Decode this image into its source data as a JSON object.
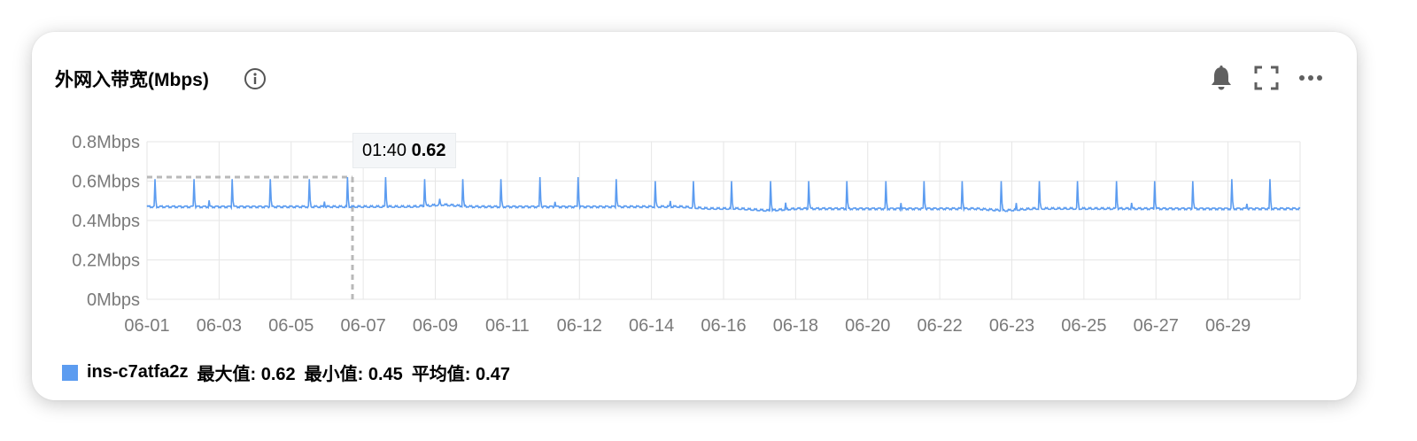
{
  "panel": {
    "title": "外网入带宽(Mbps)",
    "info_icon": "info-circle-icon",
    "toolbar_icons": [
      "bell-icon",
      "fullscreen-icon",
      "more-icon"
    ]
  },
  "colors": {
    "series": "#5c9cf0",
    "grid": "#e6e6e6",
    "guide": "#b9b9b9"
  },
  "tooltip": {
    "time": "01:40",
    "value": "0.62"
  },
  "legend": {
    "series_name": "ins-c7atfa2z",
    "max_label": "最大值: 0.62",
    "min_label": "最小值: 0.45",
    "avg_label": "平均值: 0.47"
  },
  "chart_data": {
    "type": "line",
    "title": "外网入带宽(Mbps)",
    "xlabel": "",
    "ylabel": "",
    "y_ticks": [
      "0Mbps",
      "0.2Mbps",
      "0.4Mbps",
      "0.6Mbps",
      "0.8Mbps"
    ],
    "y_tick_values": [
      0,
      0.2,
      0.4,
      0.6,
      0.8
    ],
    "ylim": [
      0,
      0.8
    ],
    "x_tick_labels": [
      "06-01",
      "06-03",
      "06-05",
      "06-07",
      "06-09",
      "06-11",
      "06-12",
      "06-14",
      "06-16",
      "06-18",
      "06-20",
      "06-22",
      "06-23",
      "06-25",
      "06-27",
      "06-29"
    ],
    "grid": true,
    "legend_position": "bottom-left",
    "series": [
      {
        "name": "ins-c7atfa2z",
        "baseline": [
          0.47,
          0.47,
          0.47,
          0.47,
          0.47,
          0.47,
          0.47,
          0.47,
          0.47,
          0.47,
          0.48,
          0.47,
          0.47,
          0.47,
          0.47,
          0.47,
          0.47,
          0.47,
          0.47,
          0.46,
          0.46,
          0.45,
          0.46,
          0.46,
          0.46,
          0.46,
          0.46,
          0.46,
          0.46,
          0.45,
          0.46,
          0.46,
          0.46,
          0.46,
          0.46,
          0.46,
          0.46,
          0.46,
          0.46,
          0.46
        ],
        "peaks": [
          0.61,
          0.61,
          0.61,
          0.61,
          0.61,
          0.62,
          0.62,
          0.61,
          0.61,
          0.61,
          0.62,
          0.62,
          0.61,
          0.6,
          0.6,
          0.6,
          0.6,
          0.6,
          0.6,
          0.6,
          0.6,
          0.6,
          0.6,
          0.6,
          0.6,
          0.6,
          0.6,
          0.6,
          0.61,
          0.61
        ],
        "max": 0.62,
        "min": 0.45,
        "avg": 0.47
      }
    ]
  }
}
